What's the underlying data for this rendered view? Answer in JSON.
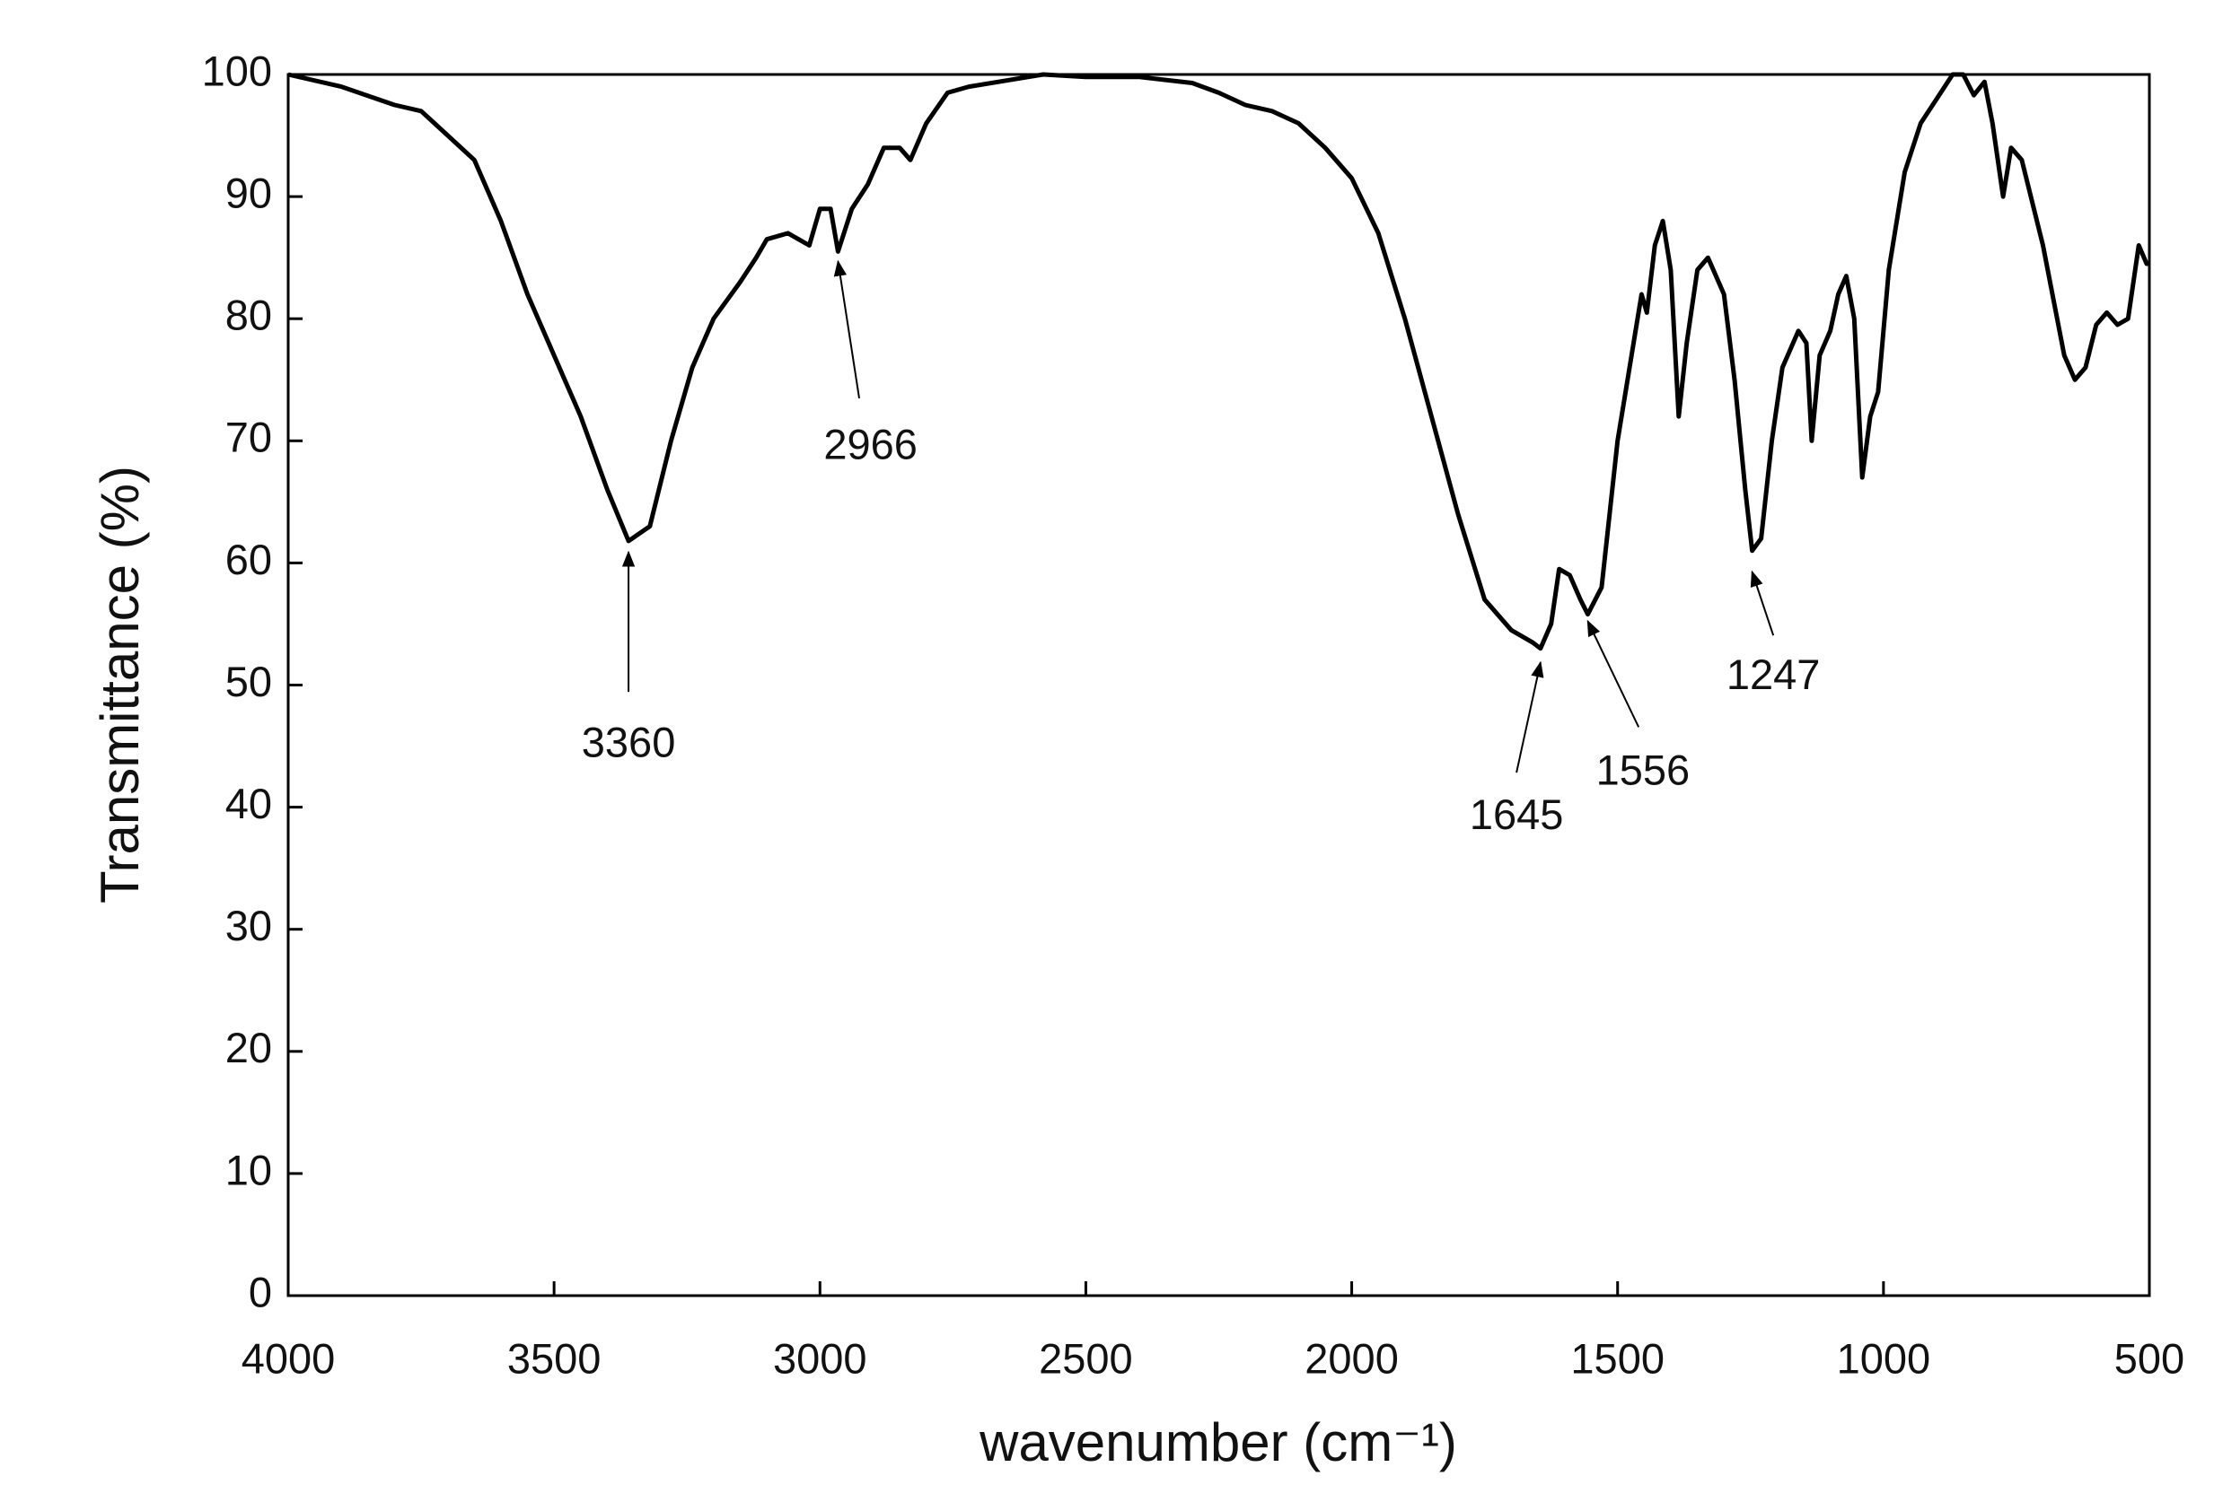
{
  "chart_data": {
    "type": "line",
    "x_label": "wavenumber (cm⁻¹)",
    "y_label": "Transmittance (%)",
    "xlim": [
      4000,
      500
    ],
    "xticks": [
      4000,
      3500,
      3000,
      2500,
      2000,
      1500,
      1000,
      500
    ],
    "ylim": [
      0,
      100
    ],
    "yticks": [
      0,
      10,
      20,
      30,
      40,
      50,
      60,
      70,
      80,
      90,
      100
    ],
    "grid": false,
    "series": [
      {
        "color": "#000000",
        "x": [
          4000,
          3900,
          3800,
          3750,
          3700,
          3650,
          3600,
          3550,
          3500,
          3450,
          3400,
          3360,
          3320,
          3280,
          3240,
          3200,
          3150,
          3120,
          3100,
          3060,
          3020,
          3000,
          2980,
          2966,
          2940,
          2910,
          2880,
          2850,
          2830,
          2800,
          2760,
          2720,
          2650,
          2580,
          2500,
          2400,
          2300,
          2250,
          2200,
          2150,
          2100,
          2050,
          2000,
          1950,
          1900,
          1850,
          1800,
          1750,
          1700,
          1660,
          1645,
          1625,
          1610,
          1590,
          1570,
          1556,
          1530,
          1500,
          1470,
          1455,
          1445,
          1430,
          1415,
          1400,
          1385,
          1370,
          1350,
          1330,
          1300,
          1280,
          1260,
          1247,
          1230,
          1210,
          1190,
          1160,
          1145,
          1135,
          1120,
          1100,
          1085,
          1070,
          1055,
          1040,
          1025,
          1010,
          990,
          960,
          930,
          900,
          870,
          850,
          830,
          810,
          795,
          775,
          760,
          740,
          700,
          660,
          640,
          620,
          600,
          580,
          560,
          540,
          520,
          505,
          500
        ],
        "values": [
          100,
          99,
          97.5,
          97,
          95,
          93,
          88,
          82,
          77,
          72,
          66,
          61.8,
          63,
          70,
          76,
          80,
          83,
          85,
          86.5,
          87,
          86,
          89,
          89,
          85.5,
          89,
          91,
          94,
          94,
          93,
          96,
          98.5,
          99,
          99.5,
          100,
          99.8,
          99.8,
          99.3,
          98.5,
          97.5,
          97,
          96,
          94,
          91.5,
          87,
          80,
          72,
          64,
          57,
          54.5,
          53.5,
          53,
          55,
          59.5,
          59,
          57,
          55.8,
          58,
          70,
          78,
          82,
          80.5,
          86,
          88,
          84,
          72,
          78,
          84,
          85,
          82,
          75,
          66,
          61,
          62,
          70,
          76,
          79,
          78,
          70,
          77,
          79,
          82,
          83.5,
          80,
          67,
          72,
          74,
          84,
          92,
          96,
          98,
          100,
          100,
          98.3,
          99.4,
          96,
          90,
          94,
          93,
          86,
          77,
          75,
          76,
          79.5,
          80.5,
          79.5,
          80,
          86,
          84.5,
          84.5
        ]
      }
    ],
    "annotations": [
      {
        "label": "3360",
        "x": 3360
      },
      {
        "label": "2966",
        "x": 2966
      },
      {
        "label": "1645",
        "x": 1645
      },
      {
        "label": "1556",
        "x": 1556
      },
      {
        "label": "1247",
        "x": 1247
      }
    ]
  }
}
